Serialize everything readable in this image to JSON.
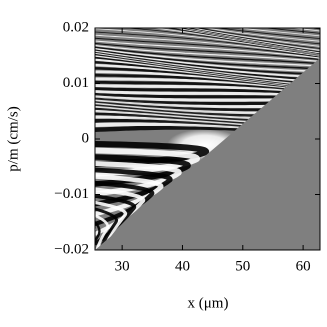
{
  "chart_data": {
    "type": "density",
    "xlabel": "x (μm)",
    "ylabel": "p/m (cm/s)",
    "xlim": [
      25.5,
      62.8
    ],
    "xticks": [
      30,
      40,
      50,
      60
    ],
    "ylim": [
      -0.02,
      0.02
    ],
    "yticks": [
      {
        "value": -0.02,
        "label": "−0.02"
      },
      {
        "value": -0.01,
        "label": "−0.01"
      },
      0,
      0.01,
      0.02
    ]
  }
}
